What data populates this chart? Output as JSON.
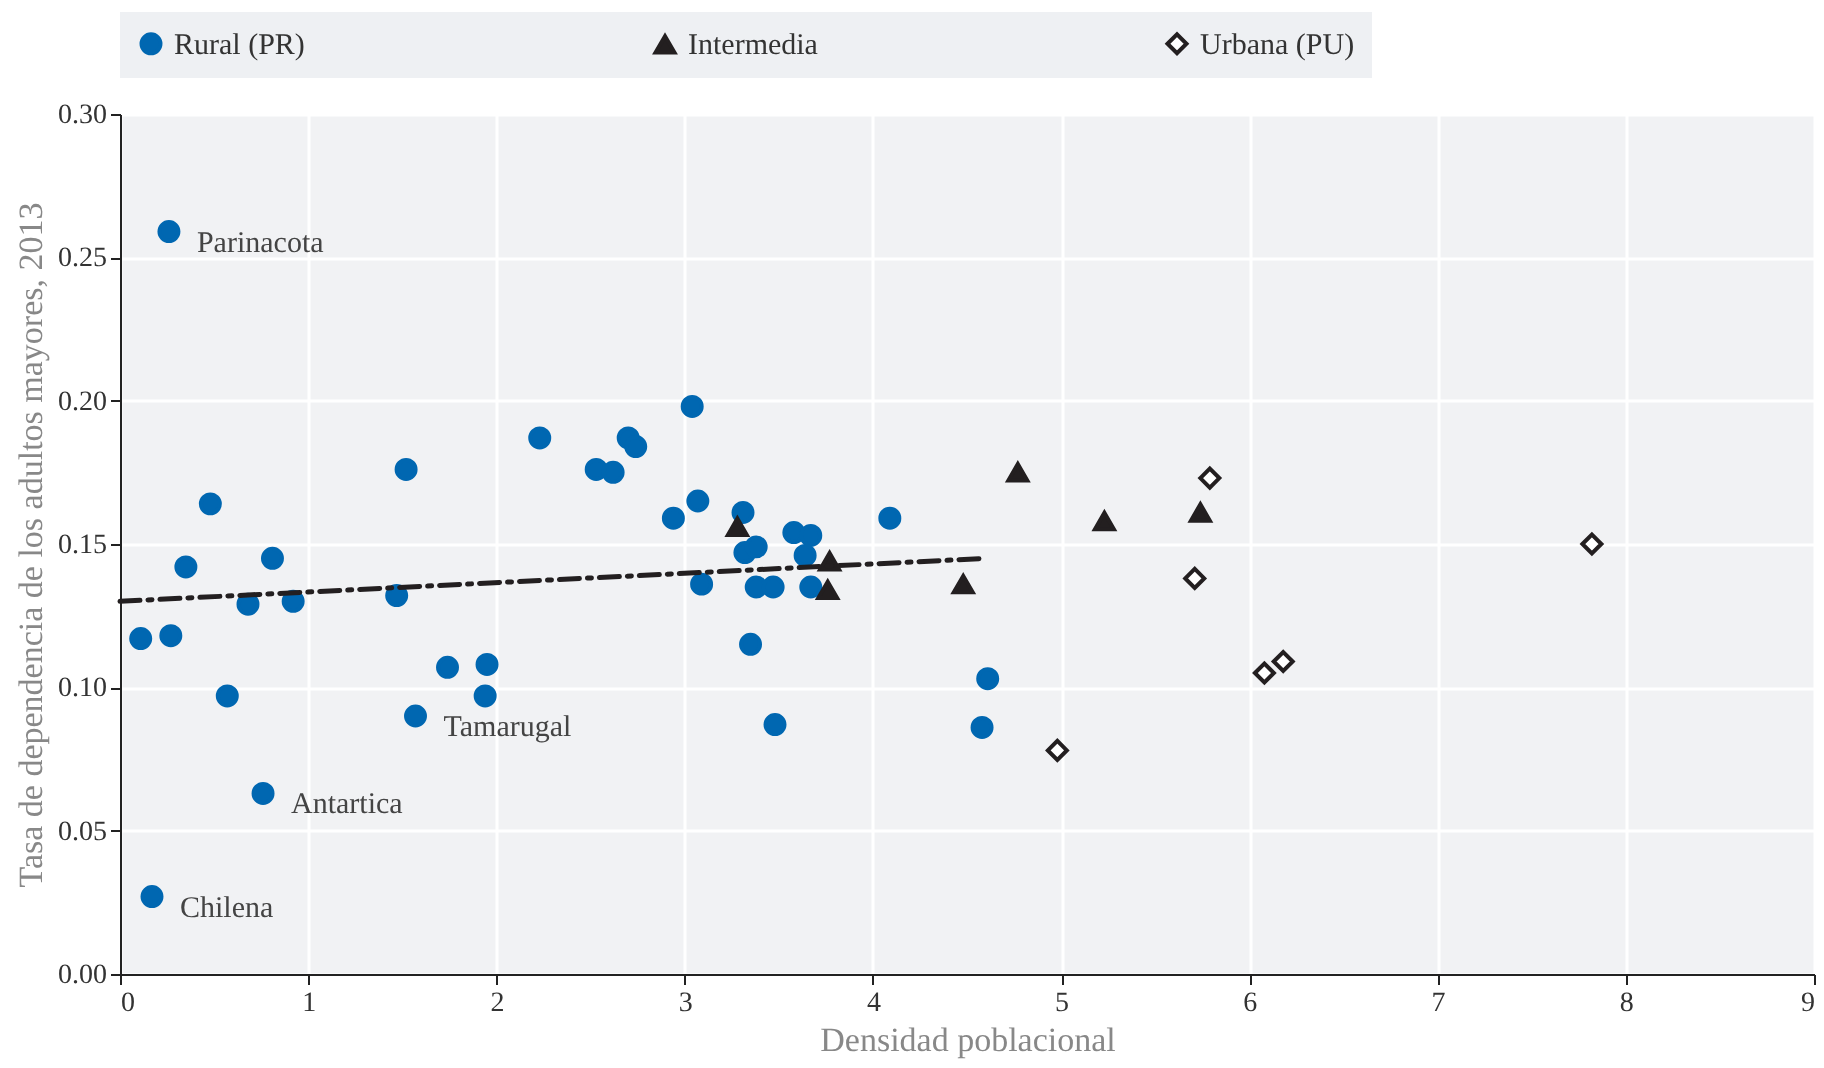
{
  "chart_data": {
    "type": "scatter",
    "xlabel": "Densidad poblacional",
    "ylabel": "Tasa de dependencia de los adultos mayores, 2013",
    "xlim": [
      0,
      9
    ],
    "xticks": [
      0,
      1,
      2,
      3,
      4,
      5,
      6,
      7,
      8,
      9
    ],
    "ylim": [
      0,
      0.3
    ],
    "yticks": [
      {
        "value": 0,
        "label": "0.00"
      },
      {
        "value": 0.05,
        "label": "0.05"
      },
      {
        "value": 0.1,
        "label": "0.10"
      },
      {
        "value": 0.15,
        "label": "0.15"
      },
      {
        "value": 0.2,
        "label": "0.20"
      },
      {
        "value": 0.25,
        "label": "0.25"
      },
      {
        "value": 0.3,
        "label": "0.30"
      }
    ],
    "grid": true,
    "legend": "top",
    "series": [
      {
        "name": "Rural (PR)",
        "color": "#0067b1",
        "marker": "circle",
        "x": [
          0.11,
          0.27,
          0.26,
          0.35,
          0.48,
          0.57,
          0.68,
          0.76,
          0.81,
          0.92,
          1.47,
          1.52,
          1.57,
          1.74,
          1.95,
          1.94,
          0.17,
          2.23,
          2.53,
          2.62,
          2.7,
          2.74,
          2.94,
          3.04,
          3.07,
          3.09,
          3.31,
          3.32,
          3.38,
          3.35,
          3.38,
          3.47,
          3.48,
          3.58,
          3.67,
          3.64,
          3.67,
          4.09,
          4.61,
          4.58
        ],
        "values": [
          0.117,
          0.118,
          0.259,
          0.142,
          0.164,
          0.097,
          0.129,
          0.063,
          0.145,
          0.13,
          0.132,
          0.176,
          0.09,
          0.107,
          0.108,
          0.097,
          0.027,
          0.187,
          0.176,
          0.175,
          0.187,
          0.184,
          0.159,
          0.198,
          0.165,
          0.136,
          0.161,
          0.147,
          0.149,
          0.115,
          0.135,
          0.135,
          0.087,
          0.154,
          0.153,
          0.146,
          0.135,
          0.159,
          0.103,
          0.086
        ]
      },
      {
        "name": "Intermedia",
        "color": "#231f20",
        "marker": "triangle",
        "x": [
          3.28,
          3.77,
          3.76,
          4.48,
          4.77,
          5.23,
          5.74
        ],
        "values": [
          0.156,
          0.144,
          0.134,
          0.136,
          0.175,
          0.158,
          0.161
        ]
      },
      {
        "name": "Urbana (PU)",
        "color": "#231f20",
        "marker": "diamond",
        "x": [
          4.98,
          5.71,
          5.79,
          6.08,
          6.18,
          7.82
        ],
        "values": [
          0.078,
          0.138,
          0.173,
          0.105,
          0.109,
          0.15
        ]
      },
      {
        "type": "line",
        "color": "#231f20",
        "line_style": "dashed",
        "marker": "none",
        "x": [
          0,
          4.6
        ],
        "values": [
          0.13,
          0.145
        ]
      }
    ],
    "annotations": [
      {
        "text": "Parinacota",
        "x": 0.26,
        "y": 0.259
      },
      {
        "text": "Tamarugal",
        "x": 1.57,
        "y": 0.09
      },
      {
        "text": "Antartica",
        "x": 0.76,
        "y": 0.063
      },
      {
        "text": "Chilena",
        "x": 0.17,
        "y": 0.027
      }
    ]
  }
}
